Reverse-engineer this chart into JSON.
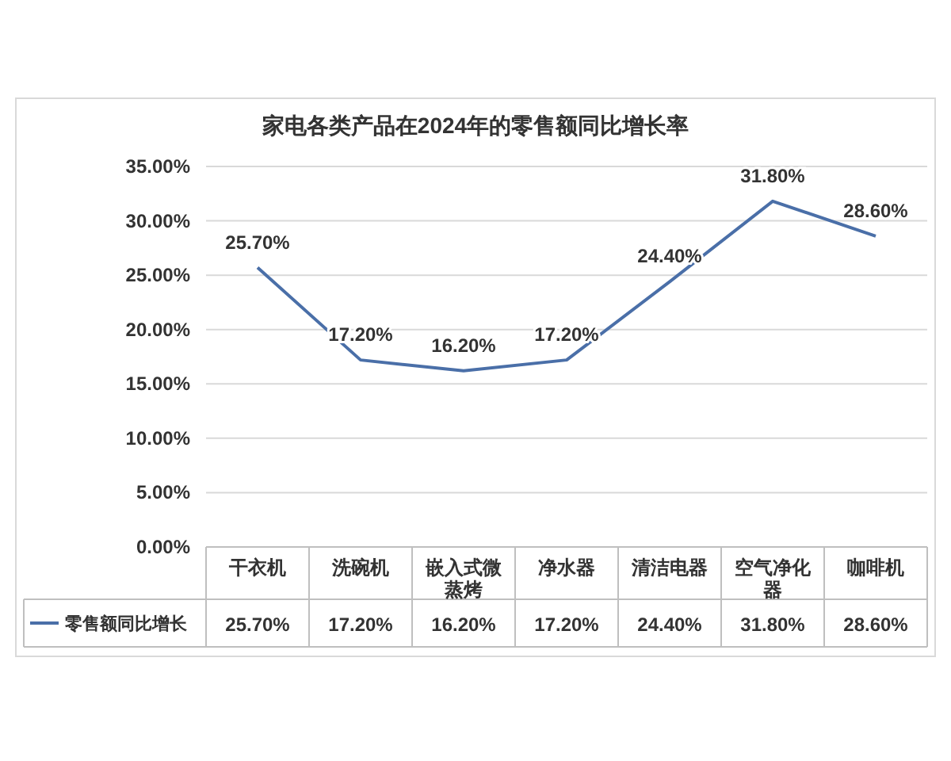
{
  "chart_data": {
    "type": "line",
    "title": "家电各类产品在2024年的零售额同比增长率",
    "categories": [
      "干衣机",
      "洗碗机",
      "嵌入式微蒸烤",
      "净水器",
      "清洁电器",
      "空气净化器",
      "咖啡机"
    ],
    "series": [
      {
        "name": "零售额同比增长",
        "color": "#4a6fa8",
        "values": [
          25.7,
          17.2,
          16.2,
          17.2,
          24.4,
          31.8,
          28.6
        ],
        "value_labels": [
          "25.70%",
          "17.20%",
          "16.20%",
          "17.20%",
          "24.40%",
          "31.80%",
          "28.60%"
        ]
      }
    ],
    "ylim": [
      0,
      35
    ],
    "yticks": [
      {
        "value": 0,
        "label": "0.00%"
      },
      {
        "value": 5,
        "label": "5.00%"
      },
      {
        "value": 10,
        "label": "10.00%"
      },
      {
        "value": 15,
        "label": "15.00%"
      },
      {
        "value": 20,
        "label": "20.00%"
      },
      {
        "value": 25,
        "label": "25.00%"
      },
      {
        "value": 30,
        "label": "30.00%"
      },
      {
        "value": 35,
        "label": "35.00%"
      }
    ],
    "grid": "y",
    "legend": "bottom",
    "marker": "none",
    "line_style": "solid"
  }
}
